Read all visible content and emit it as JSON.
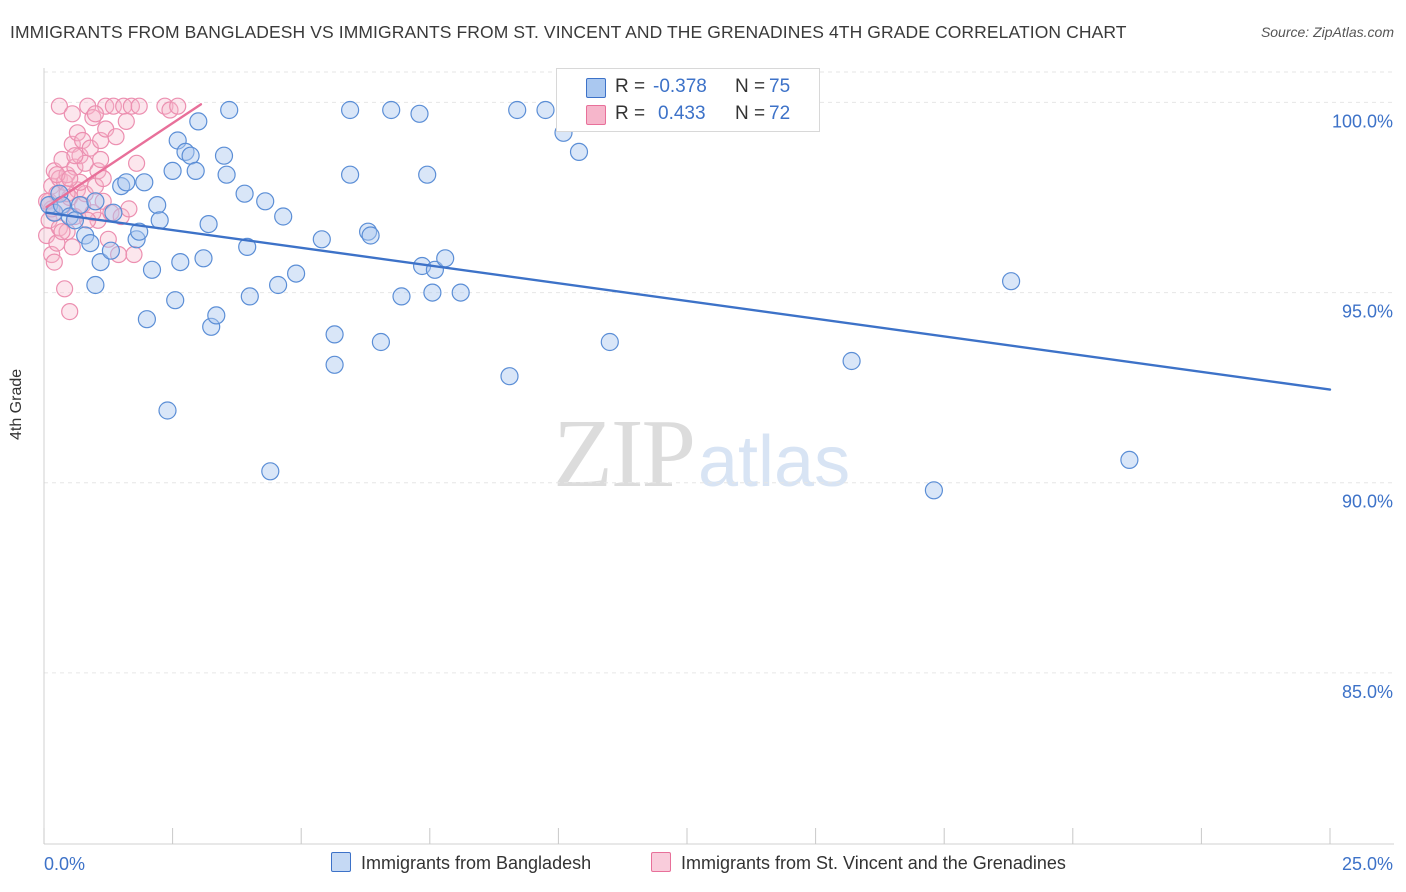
{
  "title": "IMMIGRANTS FROM BANGLADESH VS IMMIGRANTS FROM ST. VINCENT AND THE GRENADINES 4TH GRADE CORRELATION CHART",
  "source": "Source: ZipAtlas.com",
  "watermark": {
    "zip": "ZIP",
    "atlas": "atlas"
  },
  "legend": {
    "series1": {
      "r_label": "R =",
      "r_value": "-0.378",
      "n_label": "N =",
      "n_value": "75"
    },
    "series2": {
      "r_label": "R =",
      "r_value": "0.433",
      "n_label": "N =",
      "n_value": "72"
    }
  },
  "bottom_legend": {
    "series1": "Immigrants from Bangladesh",
    "series2": "Immigrants from St. Vincent and the Grenadines"
  },
  "colors": {
    "blue": "#3d72c8",
    "blue_fill": "#aac8f0",
    "pink": "#e8709a",
    "pink_fill": "#f6b6cb",
    "grid": "#e6e6e6",
    "axis_text": "#3d72c8"
  },
  "chart_data": {
    "type": "scatter",
    "title": "IMMIGRANTS FROM BANGLADESH VS IMMIGRANTS FROM ST. VINCENT AND THE GRENADINES 4TH GRADE CORRELATION CHART",
    "ylabel": "4th Grade",
    "xlim": [
      0,
      25
    ],
    "ylim": [
      80.5,
      100.8
    ],
    "x_tick_labels": [
      "0.0%",
      "25.0%"
    ],
    "y_ticks": [
      85,
      90,
      95,
      100
    ],
    "y_tick_labels": [
      "85.0%",
      "90.0%",
      "95.0%",
      "100.0%"
    ],
    "grid": true,
    "legend_position": "top-center",
    "series": [
      {
        "name": "Immigrants from Bangladesh",
        "color": "#3d72c8",
        "trend": {
          "x": [
            0.05,
            25
          ],
          "y": [
            97.1,
            92.45
          ]
        },
        "points": [
          [
            0.1,
            97.3
          ],
          [
            0.2,
            97.1
          ],
          [
            0.3,
            97.6
          ],
          [
            0.35,
            97.3
          ],
          [
            0.5,
            97.0
          ],
          [
            0.7,
            97.3
          ],
          [
            0.8,
            96.5
          ],
          [
            0.9,
            96.3
          ],
          [
            1.0,
            97.4
          ],
          [
            1.0,
            95.2
          ],
          [
            1.1,
            95.8
          ],
          [
            1.3,
            96.1
          ],
          [
            1.35,
            97.1
          ],
          [
            1.5,
            97.8
          ],
          [
            1.6,
            97.9
          ],
          [
            1.8,
            96.4
          ],
          [
            1.85,
            96.6
          ],
          [
            1.95,
            97.9
          ],
          [
            2.0,
            94.3
          ],
          [
            2.1,
            95.6
          ],
          [
            2.2,
            97.3
          ],
          [
            2.25,
            96.9
          ],
          [
            2.4,
            91.9
          ],
          [
            2.5,
            98.2
          ],
          [
            2.55,
            94.8
          ],
          [
            2.6,
            99.0
          ],
          [
            2.65,
            95.8
          ],
          [
            2.75,
            98.7
          ],
          [
            2.85,
            98.6
          ],
          [
            2.95,
            98.2
          ],
          [
            3.1,
            95.9
          ],
          [
            3.2,
            96.8
          ],
          [
            3.25,
            94.1
          ],
          [
            3.35,
            94.4
          ],
          [
            3.5,
            98.6
          ],
          [
            3.55,
            98.1
          ],
          [
            3.6,
            99.8
          ],
          [
            3.9,
            97.6
          ],
          [
            3.95,
            96.2
          ],
          [
            4.0,
            94.9
          ],
          [
            4.3,
            97.4
          ],
          [
            4.4,
            90.3
          ],
          [
            4.55,
            95.2
          ],
          [
            4.65,
            97.0
          ],
          [
            4.9,
            95.5
          ],
          [
            5.4,
            96.4
          ],
          [
            5.65,
            93.9
          ],
          [
            5.65,
            93.1
          ],
          [
            5.95,
            98.1
          ],
          [
            5.95,
            99.8
          ],
          [
            6.3,
            96.6
          ],
          [
            6.35,
            96.5
          ],
          [
            6.55,
            93.7
          ],
          [
            6.75,
            99.8
          ],
          [
            6.95,
            94.9
          ],
          [
            7.3,
            99.7
          ],
          [
            7.35,
            95.7
          ],
          [
            7.45,
            98.1
          ],
          [
            7.55,
            95.0
          ],
          [
            7.6,
            95.6
          ],
          [
            7.8,
            95.9
          ],
          [
            8.1,
            95.0
          ],
          [
            9.05,
            92.8
          ],
          [
            9.2,
            99.8
          ],
          [
            9.75,
            99.8
          ],
          [
            10.1,
            99.2
          ],
          [
            10.4,
            98.7
          ],
          [
            11.0,
            93.7
          ],
          [
            12.4,
            99.5
          ],
          [
            15.7,
            93.2
          ],
          [
            17.3,
            89.8
          ],
          [
            18.8,
            95.3
          ],
          [
            21.1,
            90.6
          ],
          [
            0.6,
            96.9
          ],
          [
            3.0,
            99.5
          ]
        ]
      },
      {
        "name": "Immigrants from St. Vincent and the Grenadines",
        "color": "#e8709a",
        "trend": {
          "x": [
            0.05,
            3.05
          ],
          "y": [
            97.25,
            99.95
          ]
        },
        "points": [
          [
            0.05,
            96.5
          ],
          [
            0.1,
            96.9
          ],
          [
            0.1,
            97.4
          ],
          [
            0.15,
            96.0
          ],
          [
            0.15,
            97.8
          ],
          [
            0.2,
            98.2
          ],
          [
            0.2,
            97.1
          ],
          [
            0.25,
            96.3
          ],
          [
            0.25,
            97.6
          ],
          [
            0.3,
            98.0
          ],
          [
            0.3,
            96.7
          ],
          [
            0.35,
            98.5
          ],
          [
            0.35,
            97.3
          ],
          [
            0.4,
            95.1
          ],
          [
            0.4,
            97.9
          ],
          [
            0.45,
            96.6
          ],
          [
            0.45,
            98.1
          ],
          [
            0.5,
            94.5
          ],
          [
            0.5,
            97.5
          ],
          [
            0.55,
            98.9
          ],
          [
            0.55,
            96.2
          ],
          [
            0.6,
            98.3
          ],
          [
            0.6,
            97.0
          ],
          [
            0.65,
            99.2
          ],
          [
            0.65,
            97.7
          ],
          [
            0.7,
            98.6
          ],
          [
            0.75,
            97.3
          ],
          [
            0.75,
            99.0
          ],
          [
            0.8,
            97.6
          ],
          [
            0.8,
            98.4
          ],
          [
            0.3,
            99.9
          ],
          [
            0.55,
            99.7
          ],
          [
            0.85,
            99.9
          ],
          [
            0.9,
            98.8
          ],
          [
            0.95,
            99.6
          ],
          [
            1.0,
            97.8
          ],
          [
            1.05,
            98.2
          ],
          [
            1.05,
            96.9
          ],
          [
            1.1,
            99.0
          ],
          [
            1.1,
            98.5
          ],
          [
            1.15,
            97.4
          ],
          [
            1.2,
            99.3
          ],
          [
            1.2,
            99.9
          ],
          [
            1.25,
            96.4
          ],
          [
            1.3,
            97.1
          ],
          [
            1.35,
            99.9
          ],
          [
            1.4,
            99.1
          ],
          [
            1.45,
            96.0
          ],
          [
            1.5,
            97.0
          ],
          [
            1.55,
            99.9
          ],
          [
            1.6,
            99.5
          ],
          [
            1.65,
            97.2
          ],
          [
            1.7,
            99.9
          ],
          [
            1.75,
            96.0
          ],
          [
            1.8,
            98.4
          ],
          [
            1.85,
            99.9
          ],
          [
            2.35,
            99.9
          ],
          [
            2.45,
            99.8
          ],
          [
            2.6,
            99.9
          ],
          [
            0.15,
            97.2
          ],
          [
            0.25,
            98.1
          ],
          [
            0.45,
            97.6
          ],
          [
            0.7,
            97.9
          ],
          [
            0.95,
            97.1
          ],
          [
            1.15,
            98.0
          ],
          [
            0.35,
            96.6
          ],
          [
            0.05,
            97.4
          ],
          [
            0.2,
            95.8
          ],
          [
            0.5,
            98.0
          ],
          [
            0.85,
            96.9
          ],
          [
            1.0,
            99.7
          ],
          [
            0.6,
            98.6
          ]
        ]
      }
    ]
  }
}
